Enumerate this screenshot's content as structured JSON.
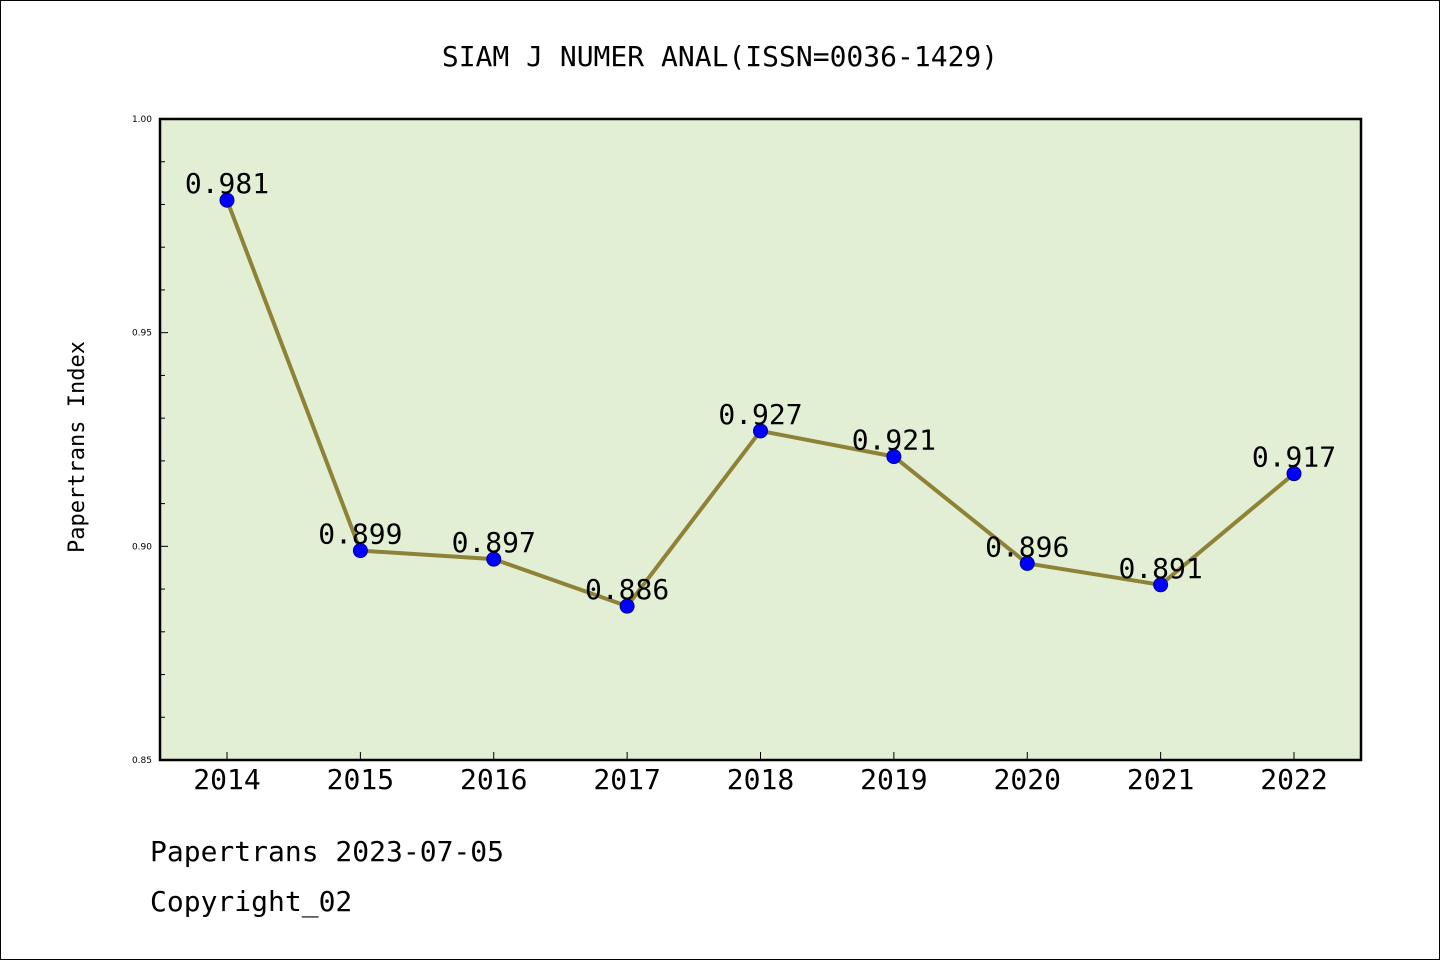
{
  "chart_data": {
    "type": "line",
    "title": "SIAM J NUMER ANAL(ISSN=0036-1429)",
    "xlabel": "",
    "ylabel": "Papertrans Index",
    "categories": [
      "2014",
      "2015",
      "2016",
      "2017",
      "2018",
      "2019",
      "2020",
      "2021",
      "2022"
    ],
    "series": [
      {
        "values": [
          0.981,
          0.899,
          0.897,
          0.886,
          0.927,
          0.921,
          0.896,
          0.891,
          0.917
        ]
      }
    ],
    "data_labels": [
      "0.981",
      "0.899",
      "0.897",
      "0.886",
      "0.927",
      "0.921",
      "0.896",
      "0.891",
      "0.917"
    ],
    "ylim": [
      0.85,
      1.0
    ],
    "yticks": [
      0.85,
      0.9,
      0.95,
      1.0
    ],
    "ytick_labels": [
      "0.85",
      "0.90",
      "0.95",
      "1.00"
    ],
    "grid": false,
    "colors": {
      "plot_background": "#e2efd5",
      "line": "#8e8236",
      "marker": "#0000ff"
    }
  },
  "footer": {
    "line1": "Papertrans 2023-07-05",
    "line2": "Copyright_02"
  }
}
